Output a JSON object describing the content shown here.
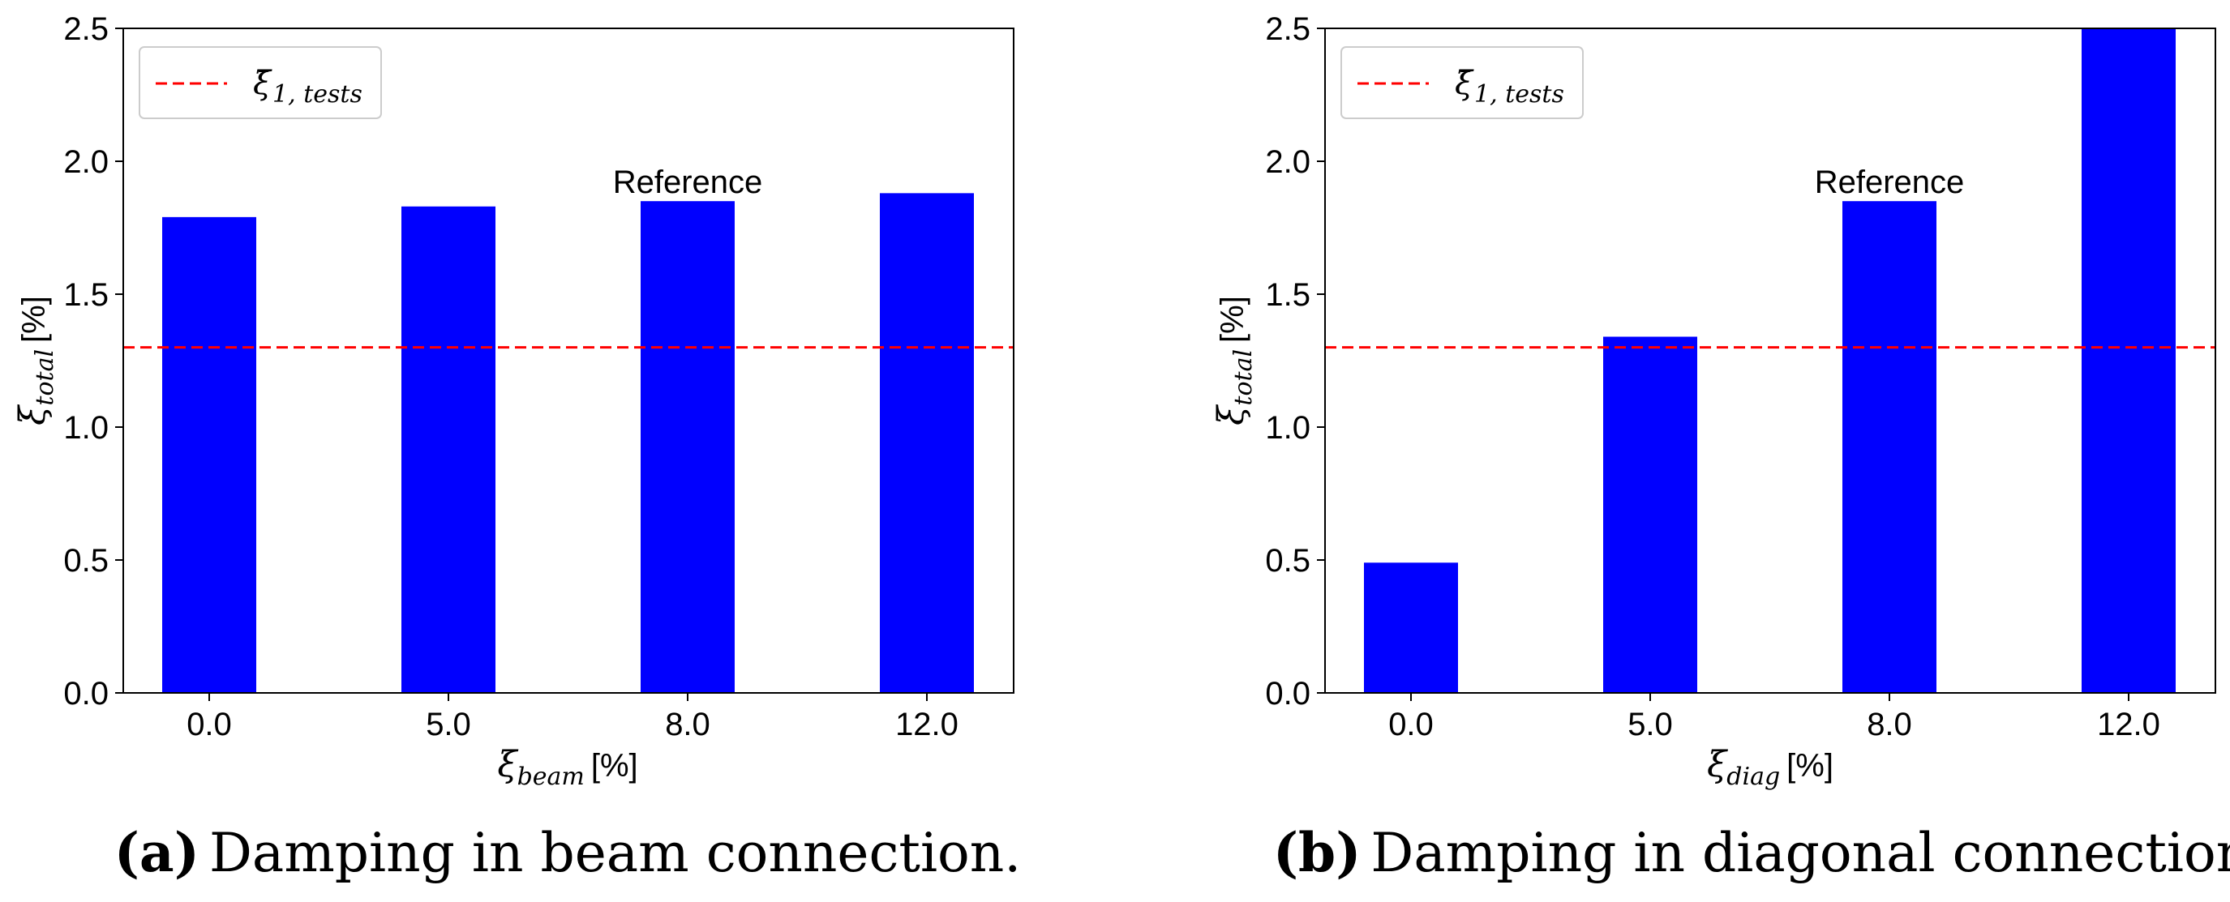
{
  "colors": {
    "bar": "#0000ff",
    "reference_line": "#ff0000",
    "axis": "#000000",
    "legend_border": "#cccccc"
  },
  "chart_data": [
    {
      "type": "bar",
      "panel": "a",
      "categories": [
        "0.0",
        "5.0",
        "8.0",
        "12.0"
      ],
      "values": [
        1.79,
        1.83,
        1.85,
        1.88
      ],
      "ylim": [
        0,
        2.5
      ],
      "yticks": [
        "0.0",
        "0.5",
        "1.0",
        "1.5",
        "2.0",
        "2.5"
      ],
      "ytick_values": [
        0,
        0.5,
        1.0,
        1.5,
        2.0,
        2.5
      ],
      "reference_line": {
        "value": 1.3,
        "style": "dashed"
      },
      "legend": {
        "symbol": "ξ̄",
        "subscript": "1, tests",
        "position": "top-left"
      },
      "annotation": {
        "text": "Reference",
        "category_index": 2
      },
      "ylabel": {
        "symbol": "ξ",
        "subscript": "total",
        "unit": "[%]"
      },
      "xlabel": {
        "symbol": "ξ",
        "subscript": "beam",
        "unit": "[%]"
      },
      "caption": {
        "tag": "(a)",
        "text": "Damping in beam connection."
      }
    },
    {
      "type": "bar",
      "panel": "b",
      "categories": [
        "0.0",
        "5.0",
        "8.0",
        "12.0"
      ],
      "values": [
        0.49,
        1.34,
        1.85,
        2.5
      ],
      "ylim": [
        0,
        2.5
      ],
      "yticks": [
        "0.0",
        "0.5",
        "1.0",
        "1.5",
        "2.0",
        "2.5"
      ],
      "ytick_values": [
        0,
        0.5,
        1.0,
        1.5,
        2.0,
        2.5
      ],
      "reference_line": {
        "value": 1.3,
        "style": "dashed"
      },
      "legend": {
        "symbol": "ξ̄",
        "subscript": "1, tests",
        "position": "top-left"
      },
      "annotation": {
        "text": "Reference",
        "category_index": 2
      },
      "ylabel": {
        "symbol": "ξ",
        "subscript": "total",
        "unit": "[%]"
      },
      "xlabel": {
        "symbol": "ξ",
        "subscript": "diag",
        "unit": "[%]"
      },
      "caption": {
        "tag": "(b)",
        "text": "Damping in diagonal connection."
      }
    }
  ]
}
